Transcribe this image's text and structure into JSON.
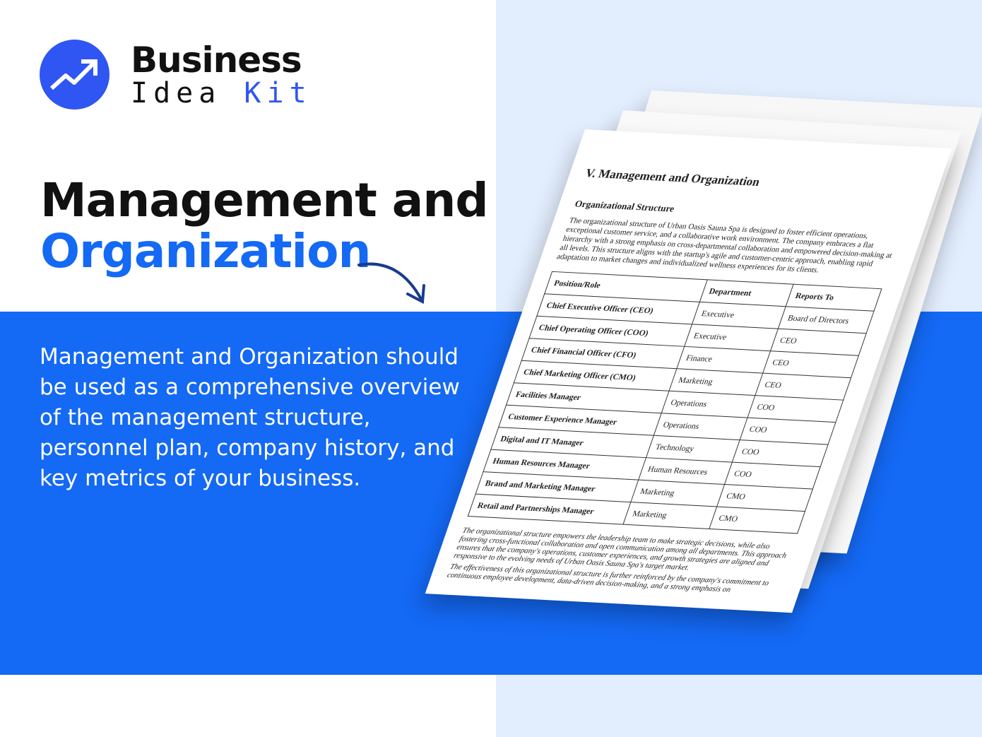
{
  "brand": {
    "line1": "Business",
    "line2a": "Idea",
    "line2b": "Kit",
    "color": "#2f55f3"
  },
  "headline": {
    "line1": "Management and",
    "line2": "Organization"
  },
  "description": "Management and Organization should be used as a comprehensive overview of the management structure, personnel plan, company history, and key metrics of your business.",
  "colors": {
    "accent": "#1469f5",
    "right_bg": "#e2edfd"
  },
  "document": {
    "heading": "V. Management and Organization",
    "subheading": "Organizational Structure",
    "intro": "The organizational structure of Urban Oasis Sauna Spa is designed to foster efficient operations, exceptional customer service, and a collaborative work environment. The company embraces a flat hierarchy with a strong emphasis on cross-departmental collaboration and empowered decision-making at all levels. This structure aligns with the startup's agile and customer-centric approach, enabling rapid adaptation to market changes and individualized wellness experiences for its clients.",
    "table": {
      "headers": [
        "Position/Role",
        "Department",
        "Reports To"
      ],
      "rows": [
        [
          "Chief Executive Officer (CEO)",
          "Executive",
          "Board of Directors"
        ],
        [
          "Chief Operating Officer (COO)",
          "Executive",
          "CEO"
        ],
        [
          "Chief Financial Officer (CFO)",
          "Finance",
          "CEO"
        ],
        [
          "Chief Marketing Officer (CMO)",
          "Marketing",
          "CEO"
        ],
        [
          "Facilities Manager",
          "Operations",
          "COO"
        ],
        [
          "Customer Experience Manager",
          "Operations",
          "COO"
        ],
        [
          "Digital and IT Manager",
          "Technology",
          "COO"
        ],
        [
          "Human Resources Manager",
          "Human Resources",
          "COO"
        ],
        [
          "Brand and Marketing Manager",
          "Marketing",
          "CMO"
        ],
        [
          "Retail and Partnerships Manager",
          "Marketing",
          "CMO"
        ]
      ]
    },
    "footer1": "The organizational structure empowers the leadership team to make strategic decisions, while also fostering cross-functional collaboration and open communication among all departments. This approach ensures that the company's operations, customer experiences, and growth strategies are aligned and responsive to the evolving needs of Urban Oasis Sauna Spa's target market.",
    "footer2": "The effectiveness of this organizational structure is further reinforced by the company's commitment to continuous employee development, data-driven decision-making, and a strong emphasis on"
  }
}
